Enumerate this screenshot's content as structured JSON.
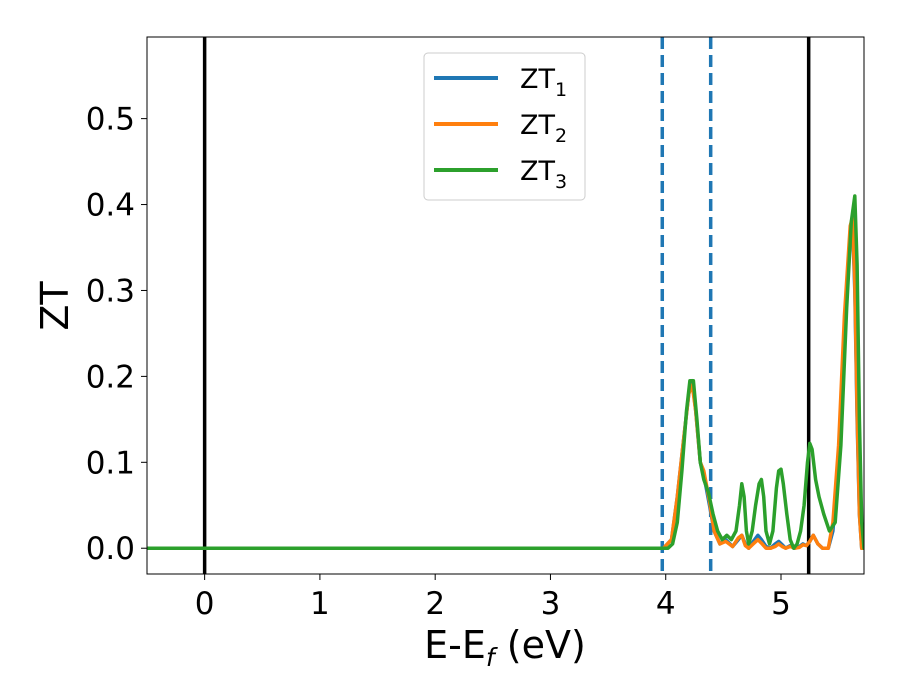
{
  "chart_data": {
    "type": "line",
    "xlabel": "E-E_f (eV)",
    "xlabel_base": "E-E",
    "xlabel_sub": "f",
    "xlabel_suffix": " (eV)",
    "ylabel": "ZT",
    "xlim": [
      -0.5,
      5.72
    ],
    "ylim": [
      -0.03,
      0.595
    ],
    "xticks": [
      0,
      1,
      2,
      3,
      4,
      5
    ],
    "xtick_labels": [
      "0",
      "1",
      "2",
      "3",
      "4",
      "5"
    ],
    "yticks": [
      0.0,
      0.1,
      0.2,
      0.3,
      0.4,
      0.5
    ],
    "ytick_labels": [
      "0.0",
      "0.1",
      "0.2",
      "0.3",
      "0.4",
      "0.5"
    ],
    "grid": false,
    "legend_position": "top-center",
    "vlines": [
      {
        "x": 0.0,
        "style": "solid",
        "color": "#000000"
      },
      {
        "x": 5.24,
        "style": "solid",
        "color": "#000000"
      },
      {
        "x": 3.97,
        "style": "dashed",
        "color": "#1f77b4"
      },
      {
        "x": 4.39,
        "style": "dashed",
        "color": "#1f77b4"
      }
    ],
    "series": [
      {
        "name": "ZT_1",
        "label_base": "ZT",
        "label_sub": "1",
        "color": "#1f77b4",
        "x": [
          -0.5,
          3.98,
          4.05,
          4.1,
          4.15,
          4.2,
          4.23,
          4.26,
          4.3,
          4.33,
          4.38,
          4.42,
          4.47,
          4.52,
          4.58,
          4.63,
          4.66,
          4.69,
          4.72,
          4.76,
          4.8,
          4.83,
          4.87,
          4.91,
          4.95,
          4.98,
          5.01,
          5.04,
          5.08,
          5.12,
          5.16,
          5.19,
          5.22,
          5.25,
          5.28,
          5.32,
          5.36,
          5.41,
          5.45,
          5.5,
          5.55,
          5.6,
          5.62,
          5.64,
          5.66,
          5.68,
          5.7,
          5.72
        ],
        "y": [
          0.0,
          0.0,
          0.01,
          0.06,
          0.12,
          0.18,
          0.195,
          0.16,
          0.1,
          0.085,
          0.05,
          0.02,
          0.005,
          0.01,
          0.002,
          0.01,
          0.015,
          0.005,
          0.0,
          0.008,
          0.015,
          0.01,
          0.002,
          0.0,
          0.005,
          0.008,
          0.004,
          0.0,
          0.003,
          0.0,
          0.002,
          0.005,
          0.003,
          0.008,
          0.015,
          0.005,
          0.0,
          0.0,
          0.02,
          0.1,
          0.25,
          0.37,
          0.38,
          0.3,
          0.15,
          0.04,
          0.0,
          0.0
        ]
      },
      {
        "name": "ZT_2",
        "label_base": "ZT",
        "label_sub": "2",
        "color": "#ff7f0e",
        "x": [
          -0.5,
          3.98,
          4.05,
          4.1,
          4.15,
          4.2,
          4.23,
          4.26,
          4.3,
          4.33,
          4.38,
          4.42,
          4.47,
          4.52,
          4.58,
          4.63,
          4.66,
          4.69,
          4.72,
          4.76,
          4.8,
          4.83,
          4.87,
          4.91,
          4.95,
          4.98,
          5.01,
          5.04,
          5.08,
          5.12,
          5.16,
          5.19,
          5.22,
          5.25,
          5.28,
          5.32,
          5.36,
          5.41,
          5.45,
          5.5,
          5.55,
          5.6,
          5.62,
          5.64,
          5.66,
          5.68,
          5.7,
          5.72
        ],
        "y": [
          0.0,
          0.0,
          0.01,
          0.06,
          0.12,
          0.18,
          0.19,
          0.16,
          0.1,
          0.09,
          0.055,
          0.02,
          0.005,
          0.008,
          0.002,
          0.012,
          0.015,
          0.003,
          0.0,
          0.005,
          0.01,
          0.006,
          0.0,
          0.0,
          0.002,
          0.005,
          0.002,
          0.0,
          0.002,
          0.0,
          0.001,
          0.004,
          0.003,
          0.008,
          0.015,
          0.005,
          0.0,
          0.0,
          0.03,
          0.12,
          0.27,
          0.375,
          0.385,
          0.31,
          0.16,
          0.04,
          0.0,
          0.0
        ]
      },
      {
        "name": "ZT_3",
        "label_base": "ZT",
        "label_sub": "3",
        "color": "#2ca02c",
        "x": [
          -0.5,
          3.97,
          4.02,
          4.06,
          4.1,
          4.14,
          4.18,
          4.21,
          4.24,
          4.27,
          4.3,
          4.33,
          4.37,
          4.41,
          4.45,
          4.49,
          4.53,
          4.57,
          4.61,
          4.64,
          4.66,
          4.68,
          4.7,
          4.72,
          4.75,
          4.78,
          4.81,
          4.83,
          4.85,
          4.87,
          4.9,
          4.93,
          4.96,
          4.98,
          5.0,
          5.02,
          5.05,
          5.08,
          5.11,
          5.14,
          5.17,
          5.2,
          5.23,
          5.25,
          5.27,
          5.3,
          5.33,
          5.37,
          5.42,
          5.47,
          5.52,
          5.57,
          5.61,
          5.64,
          5.66,
          5.68,
          5.7,
          5.72
        ],
        "y": [
          0.0,
          0.0,
          0.0,
          0.005,
          0.03,
          0.09,
          0.16,
          0.195,
          0.195,
          0.15,
          0.1,
          0.08,
          0.065,
          0.04,
          0.02,
          0.01,
          0.015,
          0.01,
          0.02,
          0.05,
          0.075,
          0.06,
          0.02,
          0.005,
          0.02,
          0.05,
          0.075,
          0.08,
          0.06,
          0.02,
          0.005,
          0.02,
          0.07,
          0.09,
          0.092,
          0.075,
          0.04,
          0.01,
          0.0,
          0.005,
          0.02,
          0.05,
          0.1,
          0.122,
          0.115,
          0.08,
          0.06,
          0.04,
          0.02,
          0.03,
          0.12,
          0.28,
          0.38,
          0.41,
          0.33,
          0.15,
          0.03,
          0.0
        ]
      }
    ]
  }
}
